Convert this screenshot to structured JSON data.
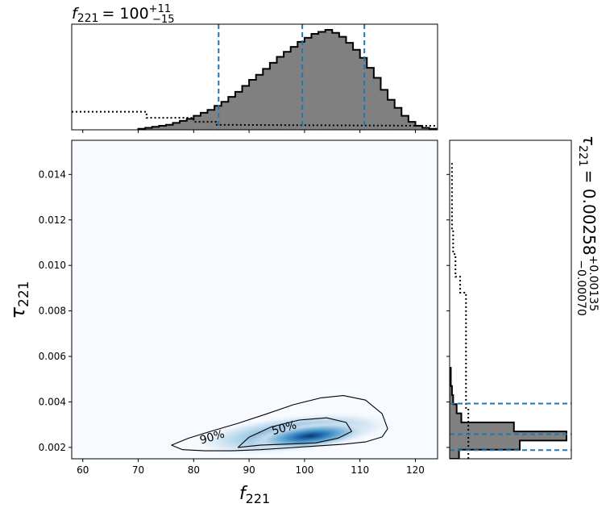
{
  "chart_data": [
    {
      "type": "heatmap",
      "panel": "joint",
      "xlabel_base": "f",
      "xlabel_sub": "221",
      "ylabel_base": "τ",
      "ylabel_sub": "221",
      "xlim": [
        58,
        124
      ],
      "ylim": [
        0.0015,
        0.0155
      ],
      "xticks": [
        60,
        70,
        80,
        90,
        100,
        110,
        120
      ],
      "yticks": [
        0.002,
        0.004,
        0.006,
        0.008,
        0.01,
        0.012,
        0.014
      ],
      "ytick_labels": [
        "0.002",
        "0.004",
        "0.006",
        "0.008",
        "0.010",
        "0.012",
        "0.014"
      ],
      "contour_labels": [
        "90%",
        "50%"
      ],
      "density_peak": [
        101,
        0.0025
      ],
      "contours": [
        {
          "level": "90%",
          "x": [
            76,
            78,
            82,
            87,
            92,
            97,
            102,
            107,
            111,
            114,
            115,
            114,
            111,
            107,
            103,
            98,
            93,
            88,
            83,
            79,
            76
          ],
          "y": [
            0.0021,
            0.0019,
            0.00185,
            0.00185,
            0.0019,
            0.00198,
            0.00206,
            0.00214,
            0.00224,
            0.00246,
            0.00282,
            0.00348,
            0.00408,
            0.00428,
            0.00418,
            0.00388,
            0.00346,
            0.00306,
            0.0027,
            0.0024,
            0.0021
          ]
        },
        {
          "level": "50%",
          "x": [
            88,
            92,
            97,
            102,
            106,
            108.5,
            107.5,
            104,
            99,
            94,
            90,
            88
          ],
          "y": [
            0.002,
            0.0021,
            0.00215,
            0.0022,
            0.0024,
            0.0027,
            0.0031,
            0.0033,
            0.0032,
            0.0029,
            0.00245,
            0.002
          ]
        }
      ]
    },
    {
      "type": "bar",
      "panel": "top-marginal",
      "title_base": "f",
      "title_sub": "221",
      "title_value": "= 100",
      "title_sup": "+11",
      "title_sub2": "−15",
      "xlim": [
        58,
        124
      ],
      "bin_edges_start": 70,
      "bin_width": 1.25,
      "histogram": [
        0.01,
        0.02,
        0.03,
        0.04,
        0.05,
        0.07,
        0.09,
        0.11,
        0.14,
        0.17,
        0.2,
        0.24,
        0.28,
        0.33,
        0.38,
        0.44,
        0.5,
        0.55,
        0.61,
        0.67,
        0.73,
        0.78,
        0.83,
        0.88,
        0.92,
        0.96,
        0.98,
        1.0,
        0.97,
        0.93,
        0.87,
        0.8,
        0.72,
        0.62,
        0.52,
        0.4,
        0.3,
        0.22,
        0.14,
        0.08,
        0.04,
        0.02,
        0.01
      ],
      "prior_x": [
        58,
        71.5,
        71.5,
        80,
        80,
        84,
        84,
        124
      ],
      "prior_y": [
        0.18,
        0.18,
        0.12,
        0.12,
        0.08,
        0.08,
        0.05,
        0.04
      ],
      "quantile_lines": [
        84.5,
        99.6,
        110.8
      ]
    },
    {
      "type": "bar",
      "panel": "right-marginal",
      "title_base": "τ",
      "title_sub": "221",
      "title_value": "= 0.00258",
      "title_sup": "+0.00135",
      "title_sub2": "−0.00070",
      "ylim": [
        0.0015,
        0.0155
      ],
      "bin_edges_start": 0.0015,
      "bin_width": 0.0004,
      "histogram": [
        0.08,
        0.6,
        1.0,
        0.55,
        0.1,
        0.06,
        0.03,
        0.02,
        0.01,
        0.01
      ],
      "prior_y": [
        0.0015,
        0.0037,
        0.0037,
        0.0088,
        0.0088,
        0.0095,
        0.0095,
        0.0105,
        0.0105,
        0.0115,
        0.0115,
        0.0145
      ],
      "prior_x": [
        0.16,
        0.16,
        0.14,
        0.14,
        0.09,
        0.09,
        0.05,
        0.05,
        0.03,
        0.03,
        0.02,
        0.02
      ],
      "quantile_lines": [
        0.00188,
        0.00258,
        0.00393
      ]
    }
  ]
}
